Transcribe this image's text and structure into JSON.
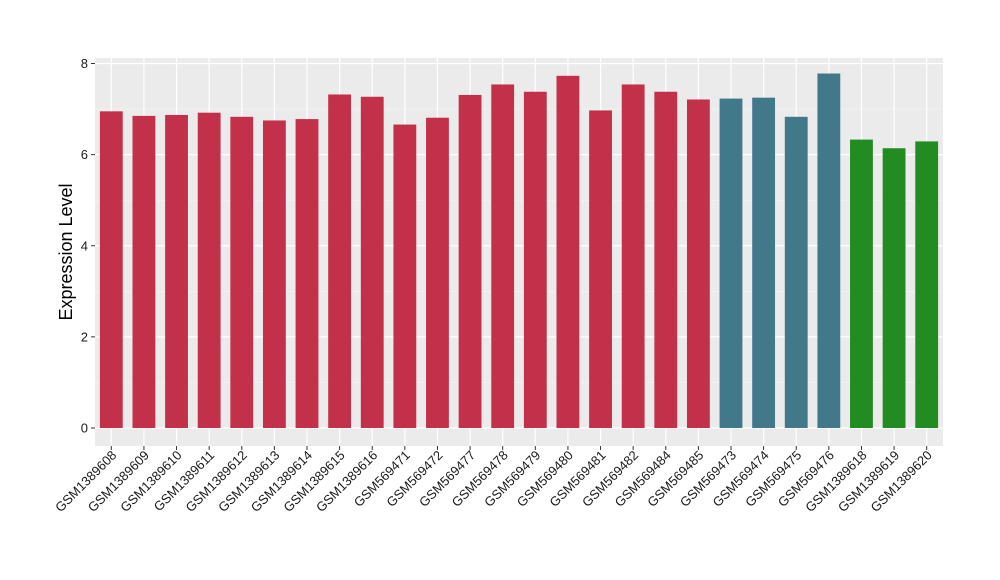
{
  "chart_data": {
    "type": "bar",
    "title": "",
    "xlabel": "",
    "ylabel": "Expression Level",
    "ylim": [
      0,
      8.2
    ],
    "yticks": [
      0,
      2,
      4,
      6,
      8
    ],
    "grid": true,
    "categories": [
      "GSM1389608",
      "GSM1389609",
      "GSM1389610",
      "GSM1389611",
      "GSM1389612",
      "GSM1389613",
      "GSM1389614",
      "GSM1389615",
      "GSM1389616",
      "GSM569471",
      "GSM569472",
      "GSM569477",
      "GSM569478",
      "GSM569479",
      "GSM569480",
      "GSM569481",
      "GSM569482",
      "GSM569484",
      "GSM569485",
      "GSM569473",
      "GSM569474",
      "GSM569475",
      "GSM569476",
      "GSM1389618",
      "GSM1389619",
      "GSM1389620"
    ],
    "values": [
      6.95,
      6.85,
      6.87,
      6.92,
      6.83,
      6.75,
      6.78,
      7.32,
      7.27,
      6.66,
      6.81,
      7.31,
      7.54,
      7.38,
      7.73,
      6.97,
      7.54,
      7.38,
      7.21,
      7.23,
      7.25,
      6.83,
      7.78,
      6.33,
      6.14,
      6.29
    ],
    "colors": [
      "#c3304a",
      "#c3304a",
      "#c3304a",
      "#c3304a",
      "#c3304a",
      "#c3304a",
      "#c3304a",
      "#c3304a",
      "#c3304a",
      "#c3304a",
      "#c3304a",
      "#c3304a",
      "#c3304a",
      "#c3304a",
      "#c3304a",
      "#c3304a",
      "#c3304a",
      "#c3304a",
      "#c3304a",
      "#41788a",
      "#41788a",
      "#41788a",
      "#41788a",
      "#228b22",
      "#228b22",
      "#228b22"
    ]
  }
}
